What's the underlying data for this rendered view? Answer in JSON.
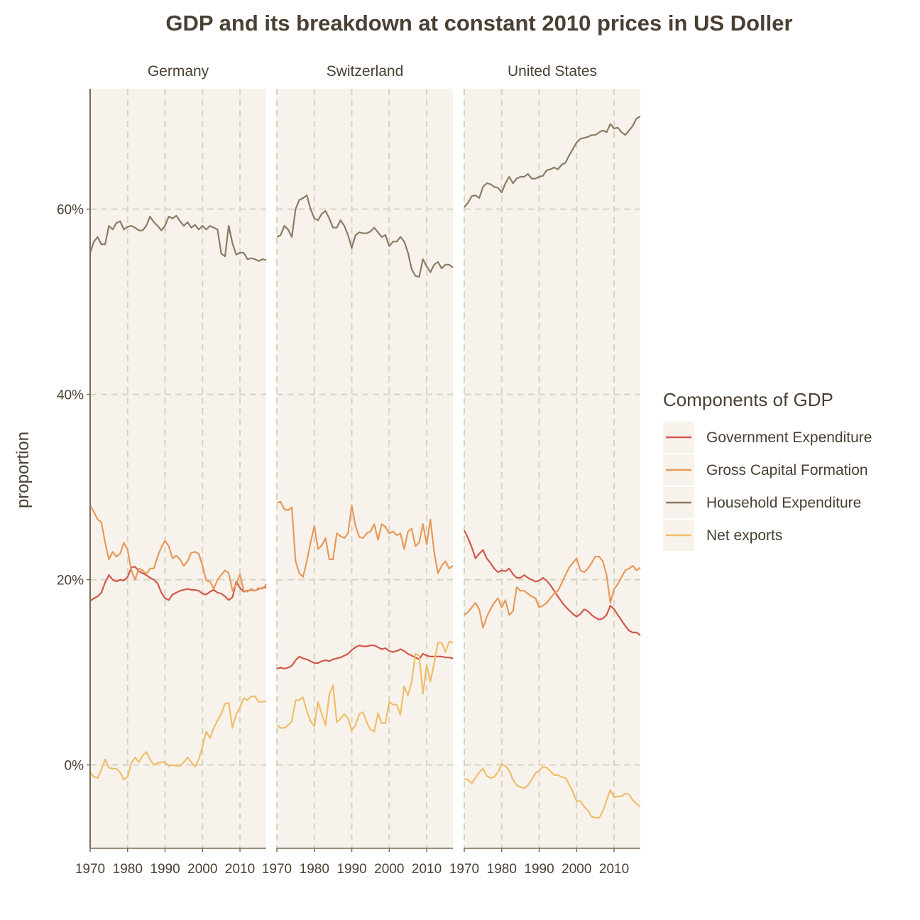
{
  "chart_data": {
    "type": "line",
    "title": "GDP and its breakdown at constant 2010 prices in US Doller",
    "xlabel": "",
    "ylabel": "proportion",
    "x_range": [
      1970,
      2017
    ],
    "ylim": [
      -0.09,
      0.73
    ],
    "x_ticks": [
      1970,
      1980,
      1990,
      2000,
      2010
    ],
    "x_tick_labels": [
      "1970",
      "1980",
      "1990",
      "2000",
      "2010"
    ],
    "y_ticks": [
      0,
      0.2,
      0.4,
      0.6
    ],
    "y_tick_labels": [
      "0%",
      "20%",
      "40%",
      "60%"
    ],
    "grid": true,
    "legend": {
      "title": "Components of GDP",
      "position": "right"
    },
    "colors": {
      "Government Expenditure": "#d1584a",
      "Gross Capital Formation": "#e8995a",
      "Household Expenditure": "#8b7b65",
      "Net exports": "#efbe6a"
    },
    "series_names": [
      "Government Expenditure",
      "Gross Capital Formation",
      "Household Expenditure",
      "Net exports"
    ],
    "x": [
      1970,
      1971,
      1972,
      1973,
      1974,
      1975,
      1976,
      1977,
      1978,
      1979,
      1980,
      1981,
      1982,
      1983,
      1984,
      1985,
      1986,
      1987,
      1988,
      1989,
      1990,
      1991,
      1992,
      1993,
      1994,
      1995,
      1996,
      1997,
      1998,
      1999,
      2000,
      2001,
      2002,
      2003,
      2004,
      2005,
      2006,
      2007,
      2008,
      2009,
      2010,
      2011,
      2012,
      2013,
      2014,
      2015,
      2016,
      2017
    ],
    "panels": [
      {
        "name": "Germany",
        "series": [
          {
            "name": "Government Expenditure",
            "values": [
              0.177,
              0.18,
              0.182,
              0.186,
              0.197,
              0.205,
              0.2,
              0.198,
              0.2,
              0.199,
              0.203,
              0.213,
              0.214,
              0.209,
              0.207,
              0.205,
              0.202,
              0.2,
              0.196,
              0.186,
              0.18,
              0.178,
              0.184,
              0.186,
              0.188,
              0.189,
              0.19,
              0.189,
              0.189,
              0.188,
              0.185,
              0.184,
              0.187,
              0.189,
              0.186,
              0.185,
              0.182,
              0.178,
              0.181,
              0.198,
              0.191,
              0.187,
              0.188,
              0.189,
              0.188,
              0.19,
              0.191,
              0.192
            ]
          },
          {
            "name": "Gross Capital Formation",
            "values": [
              0.28,
              0.273,
              0.265,
              0.262,
              0.24,
              0.222,
              0.23,
              0.225,
              0.228,
              0.24,
              0.232,
              0.21,
              0.2,
              0.212,
              0.21,
              0.206,
              0.212,
              0.212,
              0.225,
              0.235,
              0.242,
              0.236,
              0.223,
              0.226,
              0.222,
              0.215,
              0.22,
              0.229,
              0.23,
              0.228,
              0.215,
              0.199,
              0.198,
              0.19,
              0.2,
              0.205,
              0.21,
              0.207,
              0.188,
              0.195,
              0.206,
              0.188,
              0.187,
              0.19,
              0.188,
              0.191,
              0.19,
              0.195
            ]
          },
          {
            "name": "Household Expenditure",
            "values": [
              0.553,
              0.565,
              0.57,
              0.562,
              0.562,
              0.582,
              0.578,
              0.585,
              0.587,
              0.578,
              0.581,
              0.582,
              0.58,
              0.577,
              0.577,
              0.582,
              0.592,
              0.586,
              0.582,
              0.577,
              0.582,
              0.592,
              0.59,
              0.593,
              0.587,
              0.582,
              0.586,
              0.58,
              0.583,
              0.578,
              0.582,
              0.578,
              0.582,
              0.58,
              0.578,
              0.552,
              0.549,
              0.582,
              0.563,
              0.551,
              0.553,
              0.553,
              0.546,
              0.547,
              0.546,
              0.544,
              0.546,
              0.545
            ]
          },
          {
            "name": "Net exports",
            "values": [
              -0.008,
              -0.013,
              -0.014,
              -0.005,
              0.006,
              -0.003,
              -0.004,
              -0.004,
              -0.008,
              -0.016,
              -0.013,
              0.002,
              0.008,
              0.003,
              0.01,
              0.014,
              0.006,
              0.0,
              0.002,
              0.003,
              0.003,
              -0.001,
              0.0,
              -0.001,
              -0.001,
              0.003,
              0.008,
              0.003,
              -0.002,
              0.006,
              0.02,
              0.036,
              0.029,
              0.04,
              0.048,
              0.055,
              0.066,
              0.067,
              0.04,
              0.055,
              0.062,
              0.072,
              0.07,
              0.074,
              0.074,
              0.068,
              0.068,
              0.069
            ]
          }
        ]
      },
      {
        "name": "Switzerland",
        "series": [
          {
            "name": "Government Expenditure",
            "values": [
              0.104,
              0.105,
              0.104,
              0.105,
              0.107,
              0.113,
              0.117,
              0.115,
              0.114,
              0.112,
              0.11,
              0.11,
              0.112,
              0.113,
              0.112,
              0.114,
              0.115,
              0.116,
              0.118,
              0.12,
              0.124,
              0.127,
              0.129,
              0.128,
              0.128,
              0.129,
              0.129,
              0.127,
              0.125,
              0.126,
              0.123,
              0.122,
              0.123,
              0.125,
              0.123,
              0.12,
              0.118,
              0.116,
              0.114,
              0.12,
              0.118,
              0.117,
              0.117,
              0.117,
              0.117,
              0.116,
              0.116,
              0.115
            ]
          },
          {
            "name": "Gross Capital Formation",
            "values": [
              0.283,
              0.284,
              0.276,
              0.275,
              0.278,
              0.22,
              0.207,
              0.203,
              0.22,
              0.24,
              0.258,
              0.233,
              0.237,
              0.245,
              0.222,
              0.222,
              0.25,
              0.247,
              0.245,
              0.25,
              0.28,
              0.258,
              0.246,
              0.245,
              0.25,
              0.252,
              0.26,
              0.243,
              0.26,
              0.257,
              0.25,
              0.252,
              0.248,
              0.25,
              0.233,
              0.252,
              0.255,
              0.236,
              0.24,
              0.26,
              0.238,
              0.265,
              0.23,
              0.207,
              0.215,
              0.22,
              0.212,
              0.215
            ]
          },
          {
            "name": "Household Expenditure",
            "values": [
              0.57,
              0.572,
              0.582,
              0.578,
              0.57,
              0.6,
              0.61,
              0.612,
              0.615,
              0.6,
              0.59,
              0.588,
              0.595,
              0.598,
              0.59,
              0.58,
              0.58,
              0.588,
              0.582,
              0.572,
              0.558,
              0.572,
              0.575,
              0.574,
              0.574,
              0.576,
              0.58,
              0.575,
              0.57,
              0.572,
              0.56,
              0.565,
              0.565,
              0.57,
              0.565,
              0.553,
              0.535,
              0.528,
              0.527,
              0.546,
              0.538,
              0.532,
              0.54,
              0.543,
              0.536,
              0.54,
              0.54,
              0.537
            ]
          },
          {
            "name": "Net exports",
            "values": [
              0.043,
              0.04,
              0.04,
              0.043,
              0.047,
              0.07,
              0.07,
              0.073,
              0.058,
              0.047,
              0.042,
              0.068,
              0.055,
              0.043,
              0.076,
              0.086,
              0.046,
              0.05,
              0.055,
              0.05,
              0.037,
              0.043,
              0.055,
              0.057,
              0.046,
              0.038,
              0.036,
              0.056,
              0.045,
              0.045,
              0.068,
              0.065,
              0.065,
              0.054,
              0.085,
              0.075,
              0.09,
              0.12,
              0.118,
              0.077,
              0.108,
              0.09,
              0.11,
              0.132,
              0.132,
              0.122,
              0.133,
              0.132
            ]
          }
        ]
      },
      {
        "name": "United States",
        "series": [
          {
            "name": "Government Expenditure",
            "values": [
              0.253,
              0.245,
              0.235,
              0.223,
              0.228,
              0.232,
              0.223,
              0.218,
              0.212,
              0.208,
              0.21,
              0.209,
              0.212,
              0.206,
              0.202,
              0.202,
              0.205,
              0.202,
              0.2,
              0.198,
              0.199,
              0.202,
              0.199,
              0.194,
              0.188,
              0.182,
              0.176,
              0.171,
              0.167,
              0.163,
              0.16,
              0.163,
              0.168,
              0.166,
              0.162,
              0.159,
              0.157,
              0.158,
              0.162,
              0.172,
              0.168,
              0.162,
              0.156,
              0.15,
              0.145,
              0.143,
              0.143,
              0.14
            ]
          },
          {
            "name": "Gross Capital Formation",
            "values": [
              0.162,
              0.165,
              0.17,
              0.175,
              0.168,
              0.148,
              0.16,
              0.168,
              0.175,
              0.18,
              0.17,
              0.178,
              0.162,
              0.166,
              0.192,
              0.188,
              0.188,
              0.185,
              0.182,
              0.18,
              0.17,
              0.172,
              0.175,
              0.18,
              0.185,
              0.188,
              0.196,
              0.205,
              0.213,
              0.218,
              0.223,
              0.21,
              0.208,
              0.212,
              0.218,
              0.225,
              0.225,
              0.22,
              0.205,
              0.175,
              0.19,
              0.195,
              0.203,
              0.21,
              0.212,
              0.215,
              0.21,
              0.213
            ]
          },
          {
            "name": "Household Expenditure",
            "values": [
              0.602,
              0.607,
              0.614,
              0.615,
              0.612,
              0.624,
              0.628,
              0.627,
              0.624,
              0.623,
              0.618,
              0.628,
              0.635,
              0.628,
              0.633,
              0.635,
              0.635,
              0.638,
              0.633,
              0.633,
              0.635,
              0.636,
              0.642,
              0.643,
              0.645,
              0.643,
              0.648,
              0.65,
              0.658,
              0.665,
              0.672,
              0.676,
              0.677,
              0.678,
              0.68,
              0.68,
              0.683,
              0.685,
              0.683,
              0.692,
              0.687,
              0.688,
              0.683,
              0.68,
              0.685,
              0.69,
              0.698,
              0.7
            ]
          },
          {
            "name": "Net exports",
            "values": [
              -0.015,
              -0.016,
              -0.02,
              -0.014,
              -0.008,
              -0.004,
              -0.012,
              -0.014,
              -0.013,
              -0.008,
              0.001,
              -0.001,
              -0.006,
              -0.016,
              -0.022,
              -0.024,
              -0.025,
              -0.022,
              -0.016,
              -0.009,
              -0.006,
              -0.002,
              -0.003,
              -0.007,
              -0.011,
              -0.011,
              -0.013,
              -0.014,
              -0.021,
              -0.029,
              -0.039,
              -0.039,
              -0.045,
              -0.049,
              -0.056,
              -0.057,
              -0.057,
              -0.05,
              -0.038,
              -0.027,
              -0.035,
              -0.034,
              -0.034,
              -0.031,
              -0.032,
              -0.038,
              -0.042,
              -0.045
            ]
          }
        ]
      }
    ]
  }
}
